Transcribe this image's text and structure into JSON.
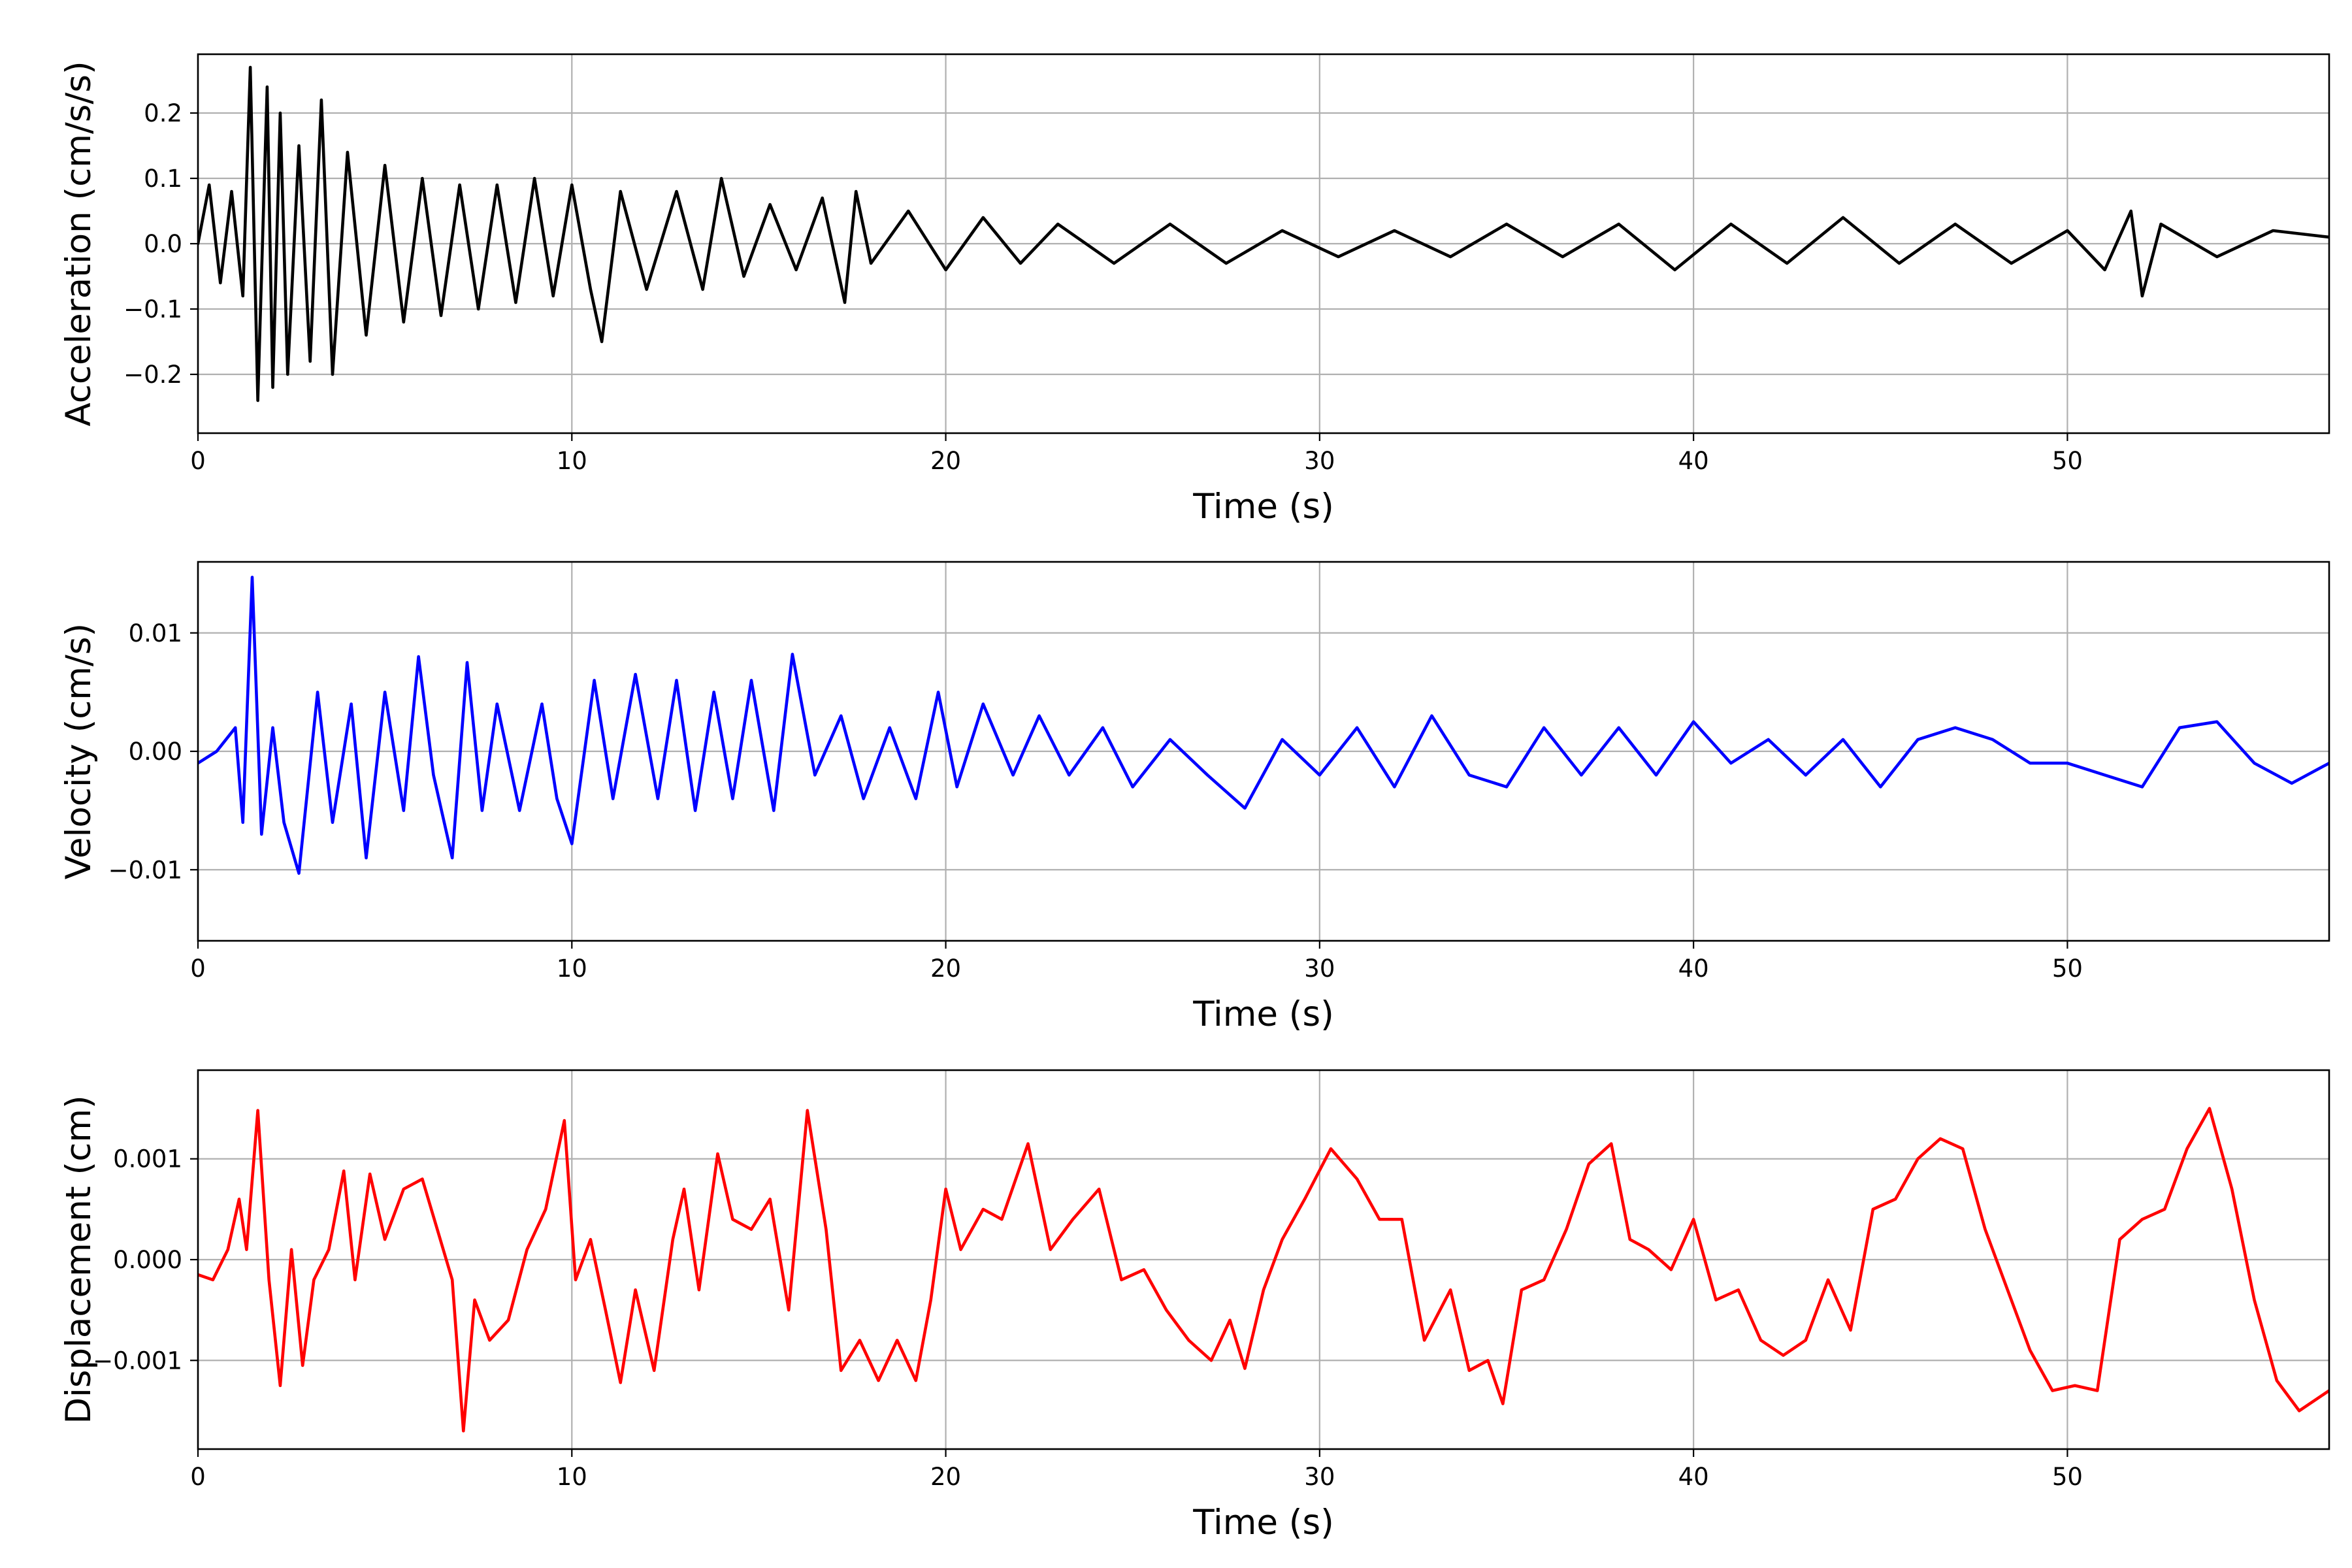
{
  "chart_data": [
    {
      "type": "line",
      "xlabel": "Time (s)",
      "ylabel": "Acceleration (cm/s/s)",
      "xlim": [
        0,
        57
      ],
      "ylim": [
        -0.29,
        0.29
      ],
      "xticks": [
        0,
        10,
        20,
        30,
        40,
        50
      ],
      "xtick_labels": [
        "0",
        "10",
        "20",
        "30",
        "40",
        "50"
      ],
      "yticks": [
        -0.2,
        -0.1,
        0.0,
        0.1,
        0.2
      ],
      "ytick_labels": [
        "−0.2",
        "−0.1",
        "0.0",
        "0.1",
        "0.2"
      ],
      "grid": true,
      "color": "#000000",
      "series": [
        {
          "x": [
            0,
            0.3,
            0.6,
            0.9,
            1.2,
            1.4,
            1.6,
            1.85,
            2.0,
            2.2,
            2.4,
            2.7,
            3.0,
            3.3,
            3.6,
            4.0,
            4.5,
            5.0,
            5.5,
            6.0,
            6.5,
            7.0,
            7.5,
            8.0,
            8.5,
            9.0,
            9.5,
            10.0,
            10.5,
            10.8,
            11.3,
            12.0,
            12.8,
            13.5,
            14.0,
            14.6,
            15.3,
            16.0,
            16.7,
            17.3,
            17.6,
            18.0,
            19.0,
            20.0,
            21.0,
            22.0,
            23.0,
            24.5,
            26.0,
            27.5,
            29.0,
            30.5,
            32.0,
            33.5,
            35.0,
            36.5,
            38.0,
            39.5,
            41.0,
            42.5,
            44.0,
            45.5,
            47.0,
            48.5,
            50.0,
            51.0,
            51.7,
            52.0,
            52.5,
            54.0,
            55.5,
            57.0
          ],
          "y": [
            0.0,
            0.09,
            -0.06,
            0.08,
            -0.08,
            0.27,
            -0.24,
            0.24,
            -0.22,
            0.2,
            -0.2,
            0.15,
            -0.18,
            0.22,
            -0.2,
            0.14,
            -0.14,
            0.12,
            -0.12,
            0.1,
            -0.11,
            0.09,
            -0.1,
            0.09,
            -0.09,
            0.1,
            -0.08,
            0.09,
            -0.07,
            -0.15,
            0.08,
            -0.07,
            0.08,
            -0.07,
            0.1,
            -0.05,
            0.06,
            -0.04,
            0.07,
            -0.09,
            0.08,
            -0.03,
            0.05,
            -0.04,
            0.04,
            -0.03,
            0.03,
            -0.03,
            0.03,
            -0.03,
            0.02,
            -0.02,
            0.02,
            -0.02,
            0.03,
            -0.02,
            0.03,
            -0.04,
            0.03,
            -0.03,
            0.04,
            -0.03,
            0.03,
            -0.03,
            0.02,
            -0.04,
            0.05,
            -0.08,
            0.03,
            -0.02,
            0.02,
            0.01
          ]
        }
      ]
    },
    {
      "type": "line",
      "xlabel": "Time (s)",
      "ylabel": "Velocity (cm/s)",
      "xlim": [
        0,
        57
      ],
      "ylim": [
        -0.016,
        0.016
      ],
      "xticks": [
        0,
        10,
        20,
        30,
        40,
        50
      ],
      "xtick_labels": [
        "0",
        "10",
        "20",
        "30",
        "40",
        "50"
      ],
      "yticks": [
        -0.01,
        0.0,
        0.01
      ],
      "ytick_labels": [
        "−0.01",
        "0.00",
        "0.01"
      ],
      "grid": true,
      "color": "#0000ff",
      "series": [
        {
          "x": [
            0,
            0.5,
            1.0,
            1.2,
            1.45,
            1.7,
            2.0,
            2.3,
            2.7,
            3.2,
            3.6,
            4.1,
            4.5,
            5.0,
            5.5,
            5.9,
            6.3,
            6.8,
            7.2,
            7.6,
            8.0,
            8.6,
            9.2,
            9.6,
            10.0,
            10.6,
            11.1,
            11.7,
            12.3,
            12.8,
            13.3,
            13.8,
            14.3,
            14.8,
            15.4,
            15.9,
            16.5,
            17.2,
            17.8,
            18.5,
            19.2,
            19.8,
            20.3,
            21.0,
            21.8,
            22.5,
            23.3,
            24.2,
            25.0,
            26.0,
            27.0,
            28.0,
            29.0,
            30.0,
            31.0,
            32.0,
            33.0,
            34.0,
            35.0,
            36.0,
            37.0,
            38.0,
            39.0,
            40.0,
            41.0,
            42.0,
            43.0,
            44.0,
            45.0,
            46.0,
            47.0,
            48.0,
            49.0,
            50.0,
            51.0,
            52.0,
            53.0,
            54.0,
            55.0,
            56.0,
            57.0
          ],
          "y": [
            -0.001,
            0.0,
            0.002,
            -0.006,
            0.0147,
            -0.007,
            0.002,
            -0.006,
            -0.0103,
            0.005,
            -0.006,
            0.004,
            -0.009,
            0.005,
            -0.005,
            0.008,
            -0.002,
            -0.009,
            0.0075,
            -0.005,
            0.004,
            -0.005,
            0.004,
            -0.004,
            -0.0078,
            0.006,
            -0.004,
            0.0065,
            -0.004,
            0.006,
            -0.005,
            0.005,
            -0.004,
            0.006,
            -0.005,
            0.0082,
            -0.002,
            0.003,
            -0.004,
            0.002,
            -0.004,
            0.005,
            -0.003,
            0.004,
            -0.002,
            0.003,
            -0.002,
            0.002,
            -0.003,
            0.001,
            -0.002,
            -0.0048,
            0.001,
            -0.002,
            0.002,
            -0.003,
            0.003,
            -0.002,
            -0.003,
            0.002,
            -0.002,
            0.002,
            -0.002,
            0.0025,
            -0.001,
            0.001,
            -0.002,
            0.001,
            -0.003,
            0.001,
            0.002,
            0.001,
            -0.001,
            -0.001,
            -0.002,
            -0.003,
            0.002,
            0.0025,
            -0.001,
            -0.0027,
            -0.001
          ]
        }
      ]
    },
    {
      "type": "line",
      "xlabel": "Time (s)",
      "ylabel": "Displacement (cm)",
      "xlim": [
        0,
        57
      ],
      "ylim": [
        -0.00188,
        0.00188
      ],
      "xticks": [
        0,
        10,
        20,
        30,
        40,
        50
      ],
      "xtick_labels": [
        "0",
        "10",
        "20",
        "30",
        "40",
        "50"
      ],
      "yticks": [
        -0.001,
        0.0,
        0.001
      ],
      "ytick_labels": [
        "−0.001",
        "0.000",
        "0.001"
      ],
      "grid": true,
      "color": "#ff0000",
      "series": [
        {
          "x": [
            0,
            0.4,
            0.8,
            1.1,
            1.3,
            1.6,
            1.9,
            2.2,
            2.5,
            2.8,
            3.1,
            3.5,
            3.9,
            4.2,
            4.6,
            5.0,
            5.5,
            6.0,
            6.4,
            6.8,
            7.1,
            7.4,
            7.8,
            8.3,
            8.8,
            9.3,
            9.8,
            10.1,
            10.5,
            10.9,
            11.3,
            11.7,
            12.2,
            12.7,
            13.0,
            13.4,
            13.9,
            14.3,
            14.8,
            15.3,
            15.8,
            16.3,
            16.8,
            17.2,
            17.7,
            18.2,
            18.7,
            19.2,
            19.6,
            20.0,
            20.4,
            21.0,
            21.5,
            22.2,
            22.8,
            23.4,
            24.1,
            24.7,
            25.3,
            25.9,
            26.5,
            27.1,
            27.6,
            28.0,
            28.5,
            29.0,
            29.6,
            30.3,
            31.0,
            31.6,
            32.2,
            32.8,
            33.5,
            34.0,
            34.5,
            34.9,
            35.4,
            36.0,
            36.6,
            37.2,
            37.8,
            38.3,
            38.8,
            39.4,
            40.0,
            40.6,
            41.2,
            41.8,
            42.4,
            43.0,
            43.6,
            44.2,
            44.8,
            45.4,
            46.0,
            46.6,
            47.2,
            47.8,
            48.4,
            49.0,
            49.6,
            50.2,
            50.8,
            51.4,
            52.0,
            52.6,
            53.2,
            53.8,
            54.4,
            55.0,
            55.6,
            56.2,
            57.0
          ],
          "y": [
            -0.00015,
            -0.0002,
            0.0001,
            0.0006,
            0.0001,
            0.00148,
            -0.0002,
            -0.00125,
            0.0001,
            -0.00105,
            -0.0002,
            0.0001,
            0.00088,
            -0.0002,
            0.00085,
            0.0002,
            0.0007,
            0.0008,
            0.0003,
            -0.0002,
            -0.0017,
            -0.0004,
            -0.0008,
            -0.0006,
            0.0001,
            0.0005,
            0.00138,
            -0.0002,
            0.0002,
            -0.0005,
            -0.00122,
            -0.0003,
            -0.0011,
            0.0002,
            0.0007,
            -0.0003,
            0.00105,
            0.0004,
            0.0003,
            0.0006,
            -0.0005,
            0.00148,
            0.0003,
            -0.0011,
            -0.0008,
            -0.0012,
            -0.0008,
            -0.0012,
            -0.0004,
            0.0007,
            0.0001,
            0.0005,
            0.0004,
            0.00115,
            0.0001,
            0.0004,
            0.0007,
            -0.0002,
            -0.0001,
            -0.0005,
            -0.0008,
            -0.001,
            -0.0006,
            -0.00108,
            -0.0003,
            0.0002,
            0.0006,
            0.0011,
            0.0008,
            0.0004,
            0.0004,
            -0.0008,
            -0.0003,
            -0.0011,
            -0.001,
            -0.00143,
            -0.0003,
            -0.0002,
            0.0003,
            0.00095,
            0.00115,
            0.0002,
            0.0001,
            -0.0001,
            0.0004,
            -0.0004,
            -0.0003,
            -0.0008,
            -0.00095,
            -0.0008,
            -0.0002,
            -0.0007,
            0.0005,
            0.0006,
            0.001,
            0.0012,
            0.0011,
            0.0003,
            -0.0003,
            -0.0009,
            -0.0013,
            -0.00125,
            -0.0013,
            0.0002,
            0.0004,
            0.0005,
            0.0011,
            0.0015,
            0.0007,
            -0.0004,
            -0.0012,
            -0.0015,
            -0.0013
          ]
        }
      ]
    }
  ]
}
